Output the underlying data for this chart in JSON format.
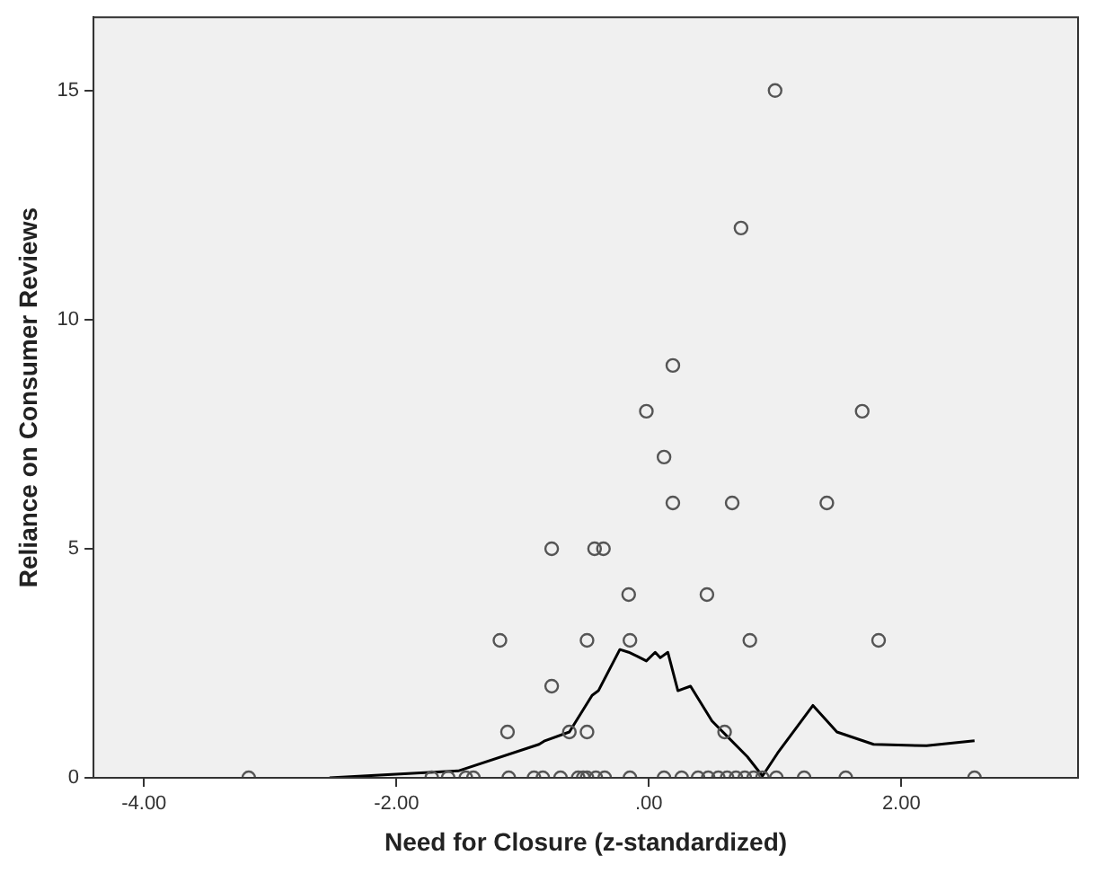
{
  "chart_data": {
    "type": "scatter",
    "xlabel": "Need for Closure (z-standardized)",
    "ylabel": "Reliance on Consumer Reviews",
    "xlim": [
      -4.4,
      3.4
    ],
    "ylim": [
      0,
      16.6
    ],
    "xticks": [
      {
        "value": -4,
        "label": "-4.00"
      },
      {
        "value": -2,
        "label": "-2.00"
      },
      {
        "value": 0,
        "label": ".00"
      },
      {
        "value": 2,
        "label": "2.00"
      }
    ],
    "yticks": [
      0,
      5,
      10,
      15
    ],
    "grid": false,
    "legend": false,
    "series": [
      {
        "type": "scatter",
        "marker": "circle",
        "color": "#555555",
        "x": [
          1.0,
          0.73,
          0.19,
          -0.02,
          1.69,
          0.12,
          0.19,
          0.66,
          1.41,
          -0.77,
          -0.43,
          -0.36,
          -0.16,
          0.46,
          -1.18,
          -0.49,
          -0.15,
          0.8,
          1.82,
          -0.77,
          -1.12,
          -0.63,
          -0.49,
          0.6,
          -3.17,
          -1.72,
          -1.59,
          -1.45,
          -1.39,
          -1.11,
          -0.91,
          -0.84,
          -0.7,
          -0.56,
          -0.52,
          -0.49,
          -0.42,
          -0.35,
          -0.15,
          0.12,
          0.26,
          0.39,
          0.47,
          0.55,
          0.62,
          0.69,
          0.76,
          0.83,
          0.9,
          1.01,
          1.23,
          1.56,
          2.58
        ],
        "values": [
          15,
          12,
          9,
          8,
          8,
          7,
          6,
          6,
          6,
          5,
          5,
          5,
          4,
          4,
          3,
          3,
          3,
          3,
          3,
          2,
          1,
          1,
          1,
          1,
          0,
          0,
          0,
          0,
          0,
          0,
          0,
          0,
          0,
          0,
          0,
          0,
          0,
          0,
          0,
          0,
          0,
          0,
          0,
          0,
          0,
          0,
          0,
          0,
          0,
          0,
          0,
          0,
          0
        ]
      },
      {
        "type": "line",
        "marker": "none",
        "line_style": "solid",
        "color": "#000000",
        "x": [
          -2.53,
          -1.51,
          -0.87,
          -0.83,
          -0.63,
          -0.45,
          -0.4,
          -0.23,
          -0.16,
          -0.09,
          -0.02,
          0.05,
          0.09,
          0.15,
          0.23,
          0.33,
          0.5,
          0.64,
          0.78,
          0.9,
          1.02,
          1.3,
          1.49,
          1.78,
          2.2,
          2.58
        ],
        "values": [
          0,
          0.15,
          0.73,
          0.8,
          1.0,
          1.8,
          1.9,
          2.8,
          2.74,
          2.65,
          2.55,
          2.74,
          2.62,
          2.74,
          1.9,
          2.0,
          1.24,
          0.85,
          0.46,
          0.04,
          0.54,
          1.58,
          1.0,
          0.73,
          0.7,
          0.81
        ]
      }
    ]
  }
}
